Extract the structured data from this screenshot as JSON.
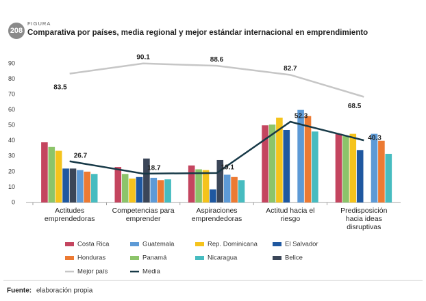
{
  "chart_data": {
    "type": "bar",
    "figure_number": "208",
    "figure_label": "FIGURA",
    "title": "Comparativa por países, media regional y mejor estándar internacional en emprendimiento",
    "categories": [
      "Actitudes emprendedoras",
      "Competencias para emprender",
      "Aspiraciones emprendedoras",
      "Actitud hacia el riesgo",
      "Predisposición hacia ideas disruptivas"
    ],
    "series": [
      {
        "name": "Costa Rica",
        "color": "#c4455f",
        "values": [
          39,
          23,
          24,
          50,
          44.5
        ]
      },
      {
        "name": "Panamá",
        "color": "#8cc46a",
        "values": [
          36,
          18.5,
          21.5,
          50.5,
          43
        ]
      },
      {
        "name": "Rep. Dominicana",
        "color": "#f5c31c",
        "values": [
          33.5,
          15.5,
          21,
          55,
          44.5
        ]
      },
      {
        "name": "El Salvador",
        "color": "#1f58a0",
        "values": [
          22,
          16.5,
          8.5,
          47,
          34
        ]
      },
      {
        "name": "Belice",
        "color": "#3b4658",
        "values": [
          22,
          28.5,
          27.5,
          null,
          null
        ]
      },
      {
        "name": "Guatemala",
        "color": "#5d9ad6",
        "values": [
          21,
          16,
          18,
          60,
          44.5
        ]
      },
      {
        "name": "Honduras",
        "color": "#ec7a33",
        "values": [
          20,
          14.5,
          16.5,
          56,
          40
        ]
      },
      {
        "name": "Nicaragua",
        "color": "#47bcc0",
        "values": [
          18.5,
          15,
          14.5,
          46,
          31.5
        ]
      },
      {
        "name": "Mejor país",
        "type": "line",
        "color": "#c6c6c6",
        "values": [
          83.5,
          90.1,
          88.6,
          82.7,
          68.5
        ]
      },
      {
        "name": "Media",
        "type": "line",
        "color": "#173947",
        "values": [
          26.7,
          18.7,
          19.1,
          52.3,
          40.3
        ]
      }
    ],
    "ylim": [
      0,
      90
    ],
    "yticks": [
      0,
      10,
      20,
      30,
      40,
      50,
      60,
      70,
      80,
      90
    ],
    "grid": false,
    "source_label": "Fuente:",
    "source": "elaboración propia"
  }
}
